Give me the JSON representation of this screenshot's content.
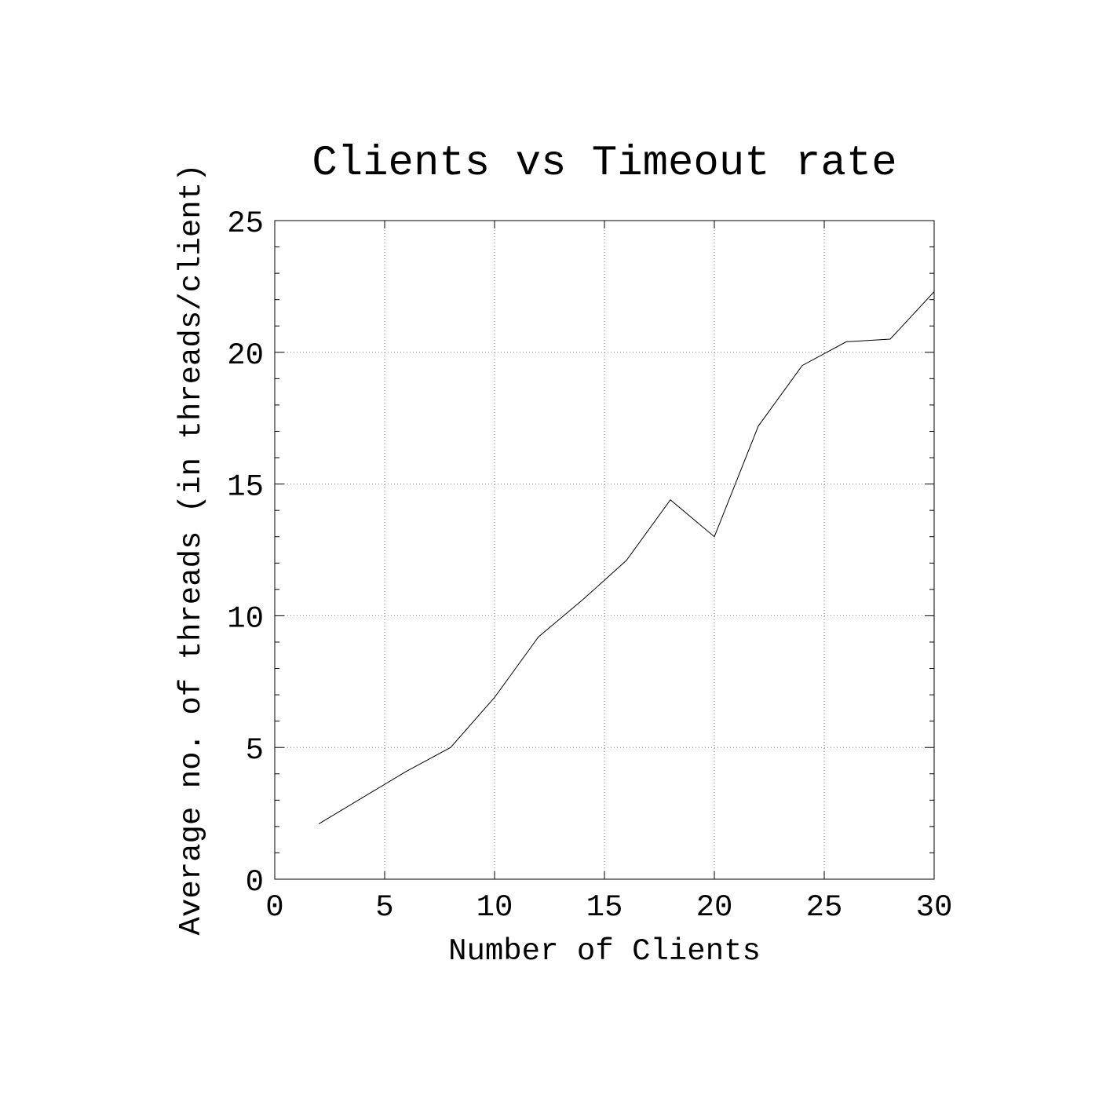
{
  "chart_data": {
    "type": "line",
    "title": "Clients vs Timeout rate",
    "xlabel": "Number of Clients",
    "ylabel": "Average no. of threads (in threads/client)",
    "xlim": [
      0,
      30
    ],
    "ylim": [
      0,
      25
    ],
    "xticks": [
      0,
      5,
      10,
      15,
      20,
      25,
      30
    ],
    "yticks": [
      0,
      5,
      10,
      15,
      20,
      25
    ],
    "y_minor_step": 1,
    "grid": true,
    "series": [
      {
        "x": [
          2,
          4,
          6,
          8,
          10,
          12,
          14,
          16,
          18,
          20,
          22,
          24,
          26,
          28,
          30
        ],
        "y": [
          2.1,
          3.1,
          4.1,
          5.0,
          6.9,
          9.2,
          10.6,
          12.1,
          14.4,
          13.0,
          17.2,
          19.5,
          20.4,
          20.5,
          22.3
        ]
      }
    ],
    "colors": {
      "line": "#000000",
      "axes": "#000000",
      "grid": "#808080"
    }
  }
}
